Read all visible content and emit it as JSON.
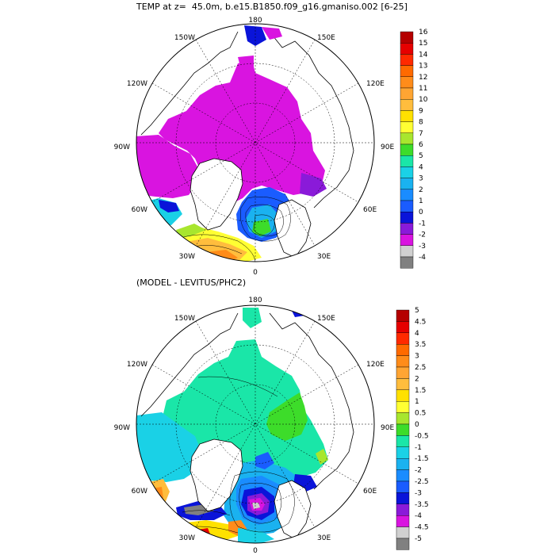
{
  "titles": {
    "main": "TEMP at z=  45.0m, b.e15.B1850.f09_g16.gmaniso.002 [6-25]",
    "diff": "(MODEL - LEVITUS/PHC2)"
  },
  "map": {
    "projection": "north polar stereographic",
    "longitude_labels": [
      "180",
      "150E",
      "120E",
      "90E",
      "60E",
      "30E",
      "0",
      "30W",
      "60W",
      "90W",
      "120W",
      "150W"
    ],
    "latitude_circles": true,
    "land_color": "#ffffff",
    "coastline_color": "#000000"
  },
  "panels": [
    {
      "name": "temperature",
      "colorbar": {
        "labels": [
          "16",
          "15",
          "14",
          "13",
          "12",
          "11",
          "10",
          "9",
          "8",
          "7",
          "6",
          "5",
          "4",
          "3",
          "2",
          "1",
          "0",
          "-1",
          "-2",
          "-3",
          "-4"
        ],
        "colors": [
          "#b50000",
          "#e60000",
          "#ff2a00",
          "#ff6a00",
          "#ff8c1a",
          "#ffa533",
          "#ffbd3d",
          "#ffe100",
          "#ffff33",
          "#a8e62e",
          "#3ddc2a",
          "#1ae6a8",
          "#1ad1e6",
          "#1ab2f0",
          "#1a8cff",
          "#1a5cff",
          "#0a14d9",
          "#8a1ad9",
          "#d914e0",
          "#d0d0d0",
          "#808080"
        ]
      }
    },
    {
      "name": "difference",
      "colorbar": {
        "labels": [
          "5",
          "4.5",
          "4",
          "3.5",
          "3",
          "2.5",
          "2",
          "1.5",
          "1",
          "0.5",
          "0",
          "-0.5",
          "-1",
          "-1.5",
          "-2",
          "-2.5",
          "-3",
          "-3.5",
          "-4",
          "-4.5",
          "-5"
        ],
        "colors": [
          "#b50000",
          "#e60000",
          "#ff2a00",
          "#ff6a00",
          "#ff8c1a",
          "#ffa533",
          "#ffbd3d",
          "#ffe100",
          "#ffff33",
          "#a8e62e",
          "#3ddc2a",
          "#1ae6a8",
          "#1ad1e6",
          "#1ab2f0",
          "#1a8cff",
          "#1a5cff",
          "#0a14d9",
          "#8a1ad9",
          "#d914e0",
          "#d0d0d0",
          "#808080"
        ]
      }
    }
  ]
}
